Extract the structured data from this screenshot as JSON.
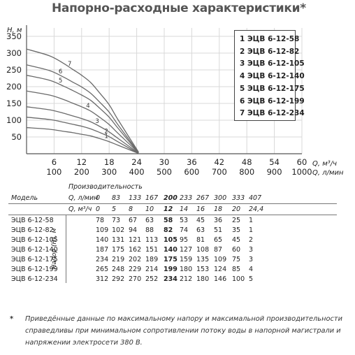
{
  "title": "Напорно-расходные характеристики*",
  "chart_data": {
    "type": "line",
    "ylabel": "H, м",
    "xlabel_m3h": "Q, м³/ч",
    "xlabel_lmin": "Q, л/мин",
    "yticks": [
      "50",
      "100",
      "150",
      "200",
      "250",
      "300",
      "350"
    ],
    "ylim": [
      0,
      375
    ],
    "xticks_m3h": [
      "6",
      "12",
      "18",
      "24",
      "30",
      "36",
      "42",
      "48",
      "54",
      "60"
    ],
    "xticks_lmin": [
      "100",
      "200",
      "300",
      "400",
      "500",
      "600",
      "700",
      "800",
      "900",
      "1000"
    ],
    "xlim": [
      0,
      60
    ],
    "x": [
      0,
      5,
      8,
      10,
      12,
      14,
      16,
      18,
      20,
      24.4
    ],
    "series": [
      {
        "label": "1",
        "values": [
          78,
          73,
          67,
          63,
          58,
          53,
          45,
          36,
          25,
          1
        ]
      },
      {
        "label": "2",
        "values": [
          109,
          102,
          94,
          88,
          82,
          74,
          63,
          51,
          35,
          1
        ]
      },
      {
        "label": "3",
        "values": [
          140,
          131,
          121,
          113,
          105,
          95,
          81,
          65,
          45,
          2
        ]
      },
      {
        "label": "4",
        "values": [
          187,
          175,
          162,
          151,
          140,
          127,
          108,
          87,
          60,
          3
        ]
      },
      {
        "label": "5",
        "values": [
          234,
          219,
          202,
          189,
          175,
          159,
          135,
          109,
          75,
          3
        ]
      },
      {
        "label": "6",
        "values": [
          265,
          248,
          229,
          214,
          199,
          180,
          153,
          124,
          85,
          4
        ]
      },
      {
        "label": "7",
        "values": [
          312,
          292,
          270,
          252,
          234,
          212,
          180,
          146,
          100,
          5
        ]
      }
    ]
  },
  "legend": [
    "1 ЭЦВ 6-12-58",
    "2 ЭЦВ 6-12-82",
    "3 ЭЦВ 6-12-105",
    "4 ЭЦВ 6-12-140",
    "5 ЭЦВ 6-12-175",
    "6 ЭЦВ 6-12-199",
    "7 ЭЦВ 6-12-234"
  ],
  "table": {
    "model_header": "Модель",
    "perf_header": "Производительность",
    "q_lmin_label": "Q, л/мин",
    "q_m3h_label": "Q, м³/ч",
    "head_label": "Напор (H), м",
    "q_lmin": [
      "0",
      "83",
      "133",
      "167",
      "200",
      "233",
      "267",
      "300",
      "333",
      "407"
    ],
    "q_m3h": [
      "0",
      "5",
      "8",
      "10",
      "12",
      "14",
      "16",
      "18",
      "20",
      "24,4"
    ],
    "rows": [
      {
        "model": "ЭЦВ 6-12-58",
        "values": [
          "78",
          "73",
          "67",
          "63",
          "58",
          "53",
          "45",
          "36",
          "25",
          "1"
        ]
      },
      {
        "model": "ЭЦВ 6-12-82",
        "values": [
          "109",
          "102",
          "94",
          "88",
          "82",
          "74",
          "63",
          "51",
          "35",
          "1"
        ]
      },
      {
        "model": "ЭЦВ 6-12-105",
        "values": [
          "140",
          "131",
          "121",
          "113",
          "105",
          "95",
          "81",
          "65",
          "45",
          "2"
        ]
      },
      {
        "model": "ЭЦВ 6-12-140",
        "values": [
          "187",
          "175",
          "162",
          "151",
          "140",
          "127",
          "108",
          "87",
          "60",
          "3"
        ]
      },
      {
        "model": "ЭЦВ 6-12-175",
        "values": [
          "234",
          "219",
          "202",
          "189",
          "175",
          "159",
          "135",
          "109",
          "75",
          "3"
        ]
      },
      {
        "model": "ЭЦВ 6-12-199",
        "values": [
          "265",
          "248",
          "229",
          "214",
          "199",
          "180",
          "153",
          "124",
          "85",
          "4"
        ]
      },
      {
        "model": "ЭЦВ 6-12-234",
        "values": [
          "312",
          "292",
          "270",
          "252",
          "234",
          "212",
          "180",
          "146",
          "100",
          "5"
        ]
      }
    ]
  },
  "note_star": "*",
  "note": "Приведённые данные по максимальному напору и максимальной производительности справедливы при минимальном сопротивлении потоку воды в напорной магистрали и напряжении электросети 380 В."
}
